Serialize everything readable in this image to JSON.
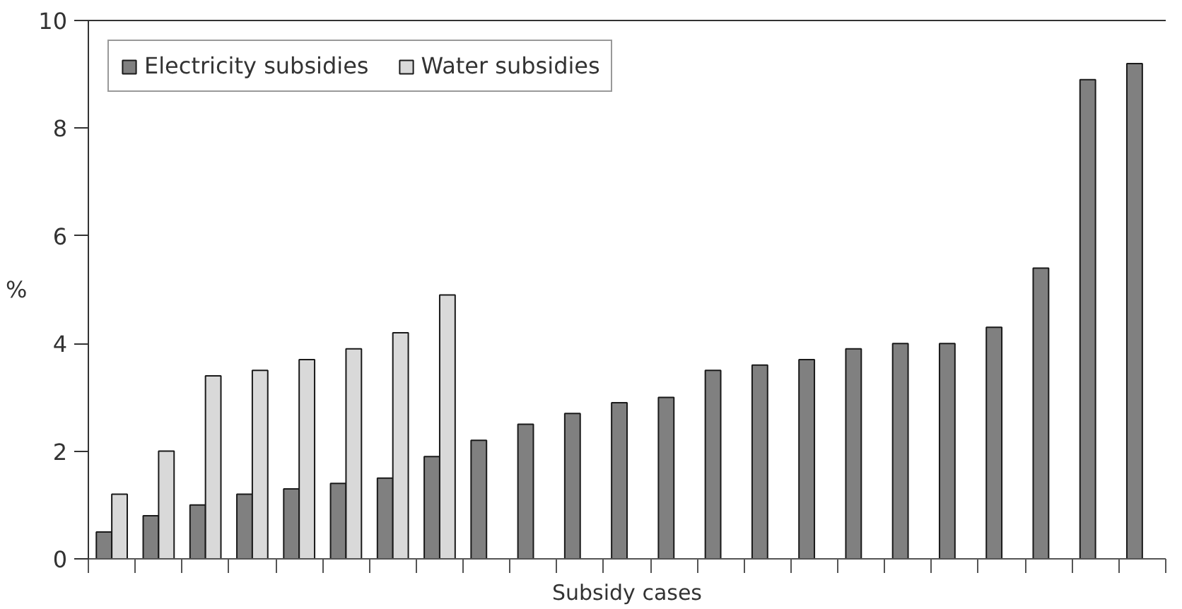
{
  "chart_data": {
    "type": "bar",
    "xlabel": "Subsidy cases",
    "ylabel": "%",
    "categories": [
      null,
      null,
      null,
      null,
      null,
      null,
      null,
      null,
      null,
      null,
      null,
      null,
      null,
      null,
      null,
      null,
      null,
      null,
      null,
      null,
      null,
      null,
      null
    ],
    "series": [
      {
        "name": "Electricity subsidies",
        "color": "#808080",
        "values": [
          0.5,
          0.8,
          1.0,
          1.2,
          1.3,
          1.4,
          1.5,
          1.9,
          2.2,
          2.5,
          2.7,
          2.9,
          3.0,
          3.5,
          3.6,
          3.7,
          3.9,
          4.0,
          4.0,
          4.3,
          5.4,
          8.9,
          9.2
        ]
      },
      {
        "name": "Water subsidies",
        "color": "#d9d9d9",
        "values": [
          1.2,
          2.0,
          3.4,
          3.5,
          3.7,
          3.9,
          4.2,
          4.9,
          null,
          null,
          null,
          null,
          null,
          null,
          null,
          null,
          null,
          null,
          null,
          null,
          null,
          null,
          null
        ]
      }
    ],
    "ylim": [
      0,
      10
    ],
    "yticks": [
      0,
      2,
      4,
      6,
      8,
      10
    ],
    "legend": "top left",
    "grid": false
  }
}
